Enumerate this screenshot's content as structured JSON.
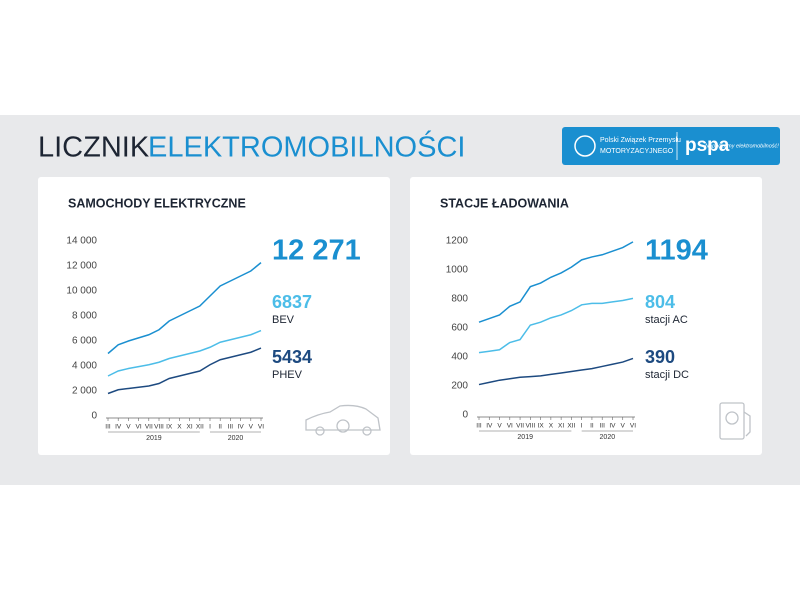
{
  "header": {
    "title_part1": "LICZNIK",
    "title_part2": "ELEKTROMOBILNOŚCI",
    "logos": {
      "org_line1": "Polski Związek Przemysłu",
      "org_line2": "MOTORYZACYJNEGO",
      "brand": "pspa",
      "slogan": "Napędzamy elektromobilność!"
    }
  },
  "chart_data": [
    {
      "type": "line",
      "title": "SAMOCHODY ELEKTRYCZNE",
      "categories": [
        "III",
        "IV",
        "V",
        "VI",
        "VII",
        "VIII",
        "IX",
        "X",
        "XI",
        "XII",
        "I",
        "II",
        "III",
        "IV",
        "V",
        "VI"
      ],
      "year_groups": [
        {
          "label": "2019",
          "months": 10
        },
        {
          "label": "2020",
          "months": 6
        }
      ],
      "ylim": [
        0,
        14000
      ],
      "yticks": [
        {
          "value": 0,
          "label": "0"
        },
        {
          "value": 2000,
          "label": "2 000"
        },
        {
          "value": 4000,
          "label": "4 000"
        },
        {
          "value": 6000,
          "label": "6 000"
        },
        {
          "value": 8000,
          "label": "8 000"
        },
        {
          "value": 10000,
          "label": "10 000"
        },
        {
          "value": 12000,
          "label": "12 000"
        },
        {
          "value": 14000,
          "label": "14 000"
        }
      ],
      "series": [
        {
          "color": "#1a8fd0",
          "values": [
            5000,
            5700,
            6000,
            6250,
            6500,
            6900,
            7600,
            8000,
            8400,
            8800,
            9600,
            10400,
            10800,
            11200,
            11600,
            12271
          ],
          "value_labels": [
            null,
            null,
            null,
            null,
            null,
            null,
            null,
            null,
            null,
            null,
            null,
            null,
            null,
            null,
            null,
            "12 271"
          ]
        },
        {
          "name": "BEV",
          "color": "#4cbde8",
          "values": [
            3200,
            3600,
            3800,
            3950,
            4100,
            4300,
            4600,
            4800,
            5000,
            5200,
            5500,
            5900,
            6100,
            6300,
            6500,
            6837
          ]
        },
        {
          "name": "PHEV",
          "color": "#1d4a80",
          "values": [
            1800,
            2100,
            2200,
            2300,
            2400,
            2600,
            3000,
            3200,
            3400,
            3600,
            4100,
            4500,
            4700,
            4900,
            5100,
            5434
          ]
        }
      ]
    },
    {
      "type": "line",
      "title": "STACJE ŁADOWANIA",
      "categories": [
        "III",
        "IV",
        "V",
        "VI",
        "VII",
        "VIII",
        "IX",
        "X",
        "XI",
        "XII",
        "I",
        "II",
        "III",
        "IV",
        "V",
        "VI"
      ],
      "year_groups": [
        {
          "label": "2019",
          "months": 10
        },
        {
          "label": "2020",
          "months": 6
        }
      ],
      "ylim": [
        0,
        1200
      ],
      "yticks": [
        0,
        200,
        400,
        600,
        800,
        1000,
        1200
      ],
      "series": [
        {
          "color": "#1a8fd0",
          "values": [
            640,
            665,
            690,
            750,
            780,
            885,
            910,
            950,
            980,
            1020,
            1070,
            1090,
            1105,
            1130,
            1155,
            1194
          ]
        },
        {
          "name": "stacji AC",
          "color": "#4cbde8",
          "values": [
            430,
            440,
            450,
            500,
            520,
            620,
            640,
            670,
            690,
            720,
            760,
            770,
            770,
            780,
            790,
            804
          ]
        },
        {
          "name": "stacji DC",
          "color": "#1d4a80",
          "values": [
            210,
            225,
            240,
            250,
            260,
            265,
            270,
            280,
            290,
            300,
            310,
            320,
            335,
            350,
            365,
            390
          ]
        }
      ]
    }
  ]
}
